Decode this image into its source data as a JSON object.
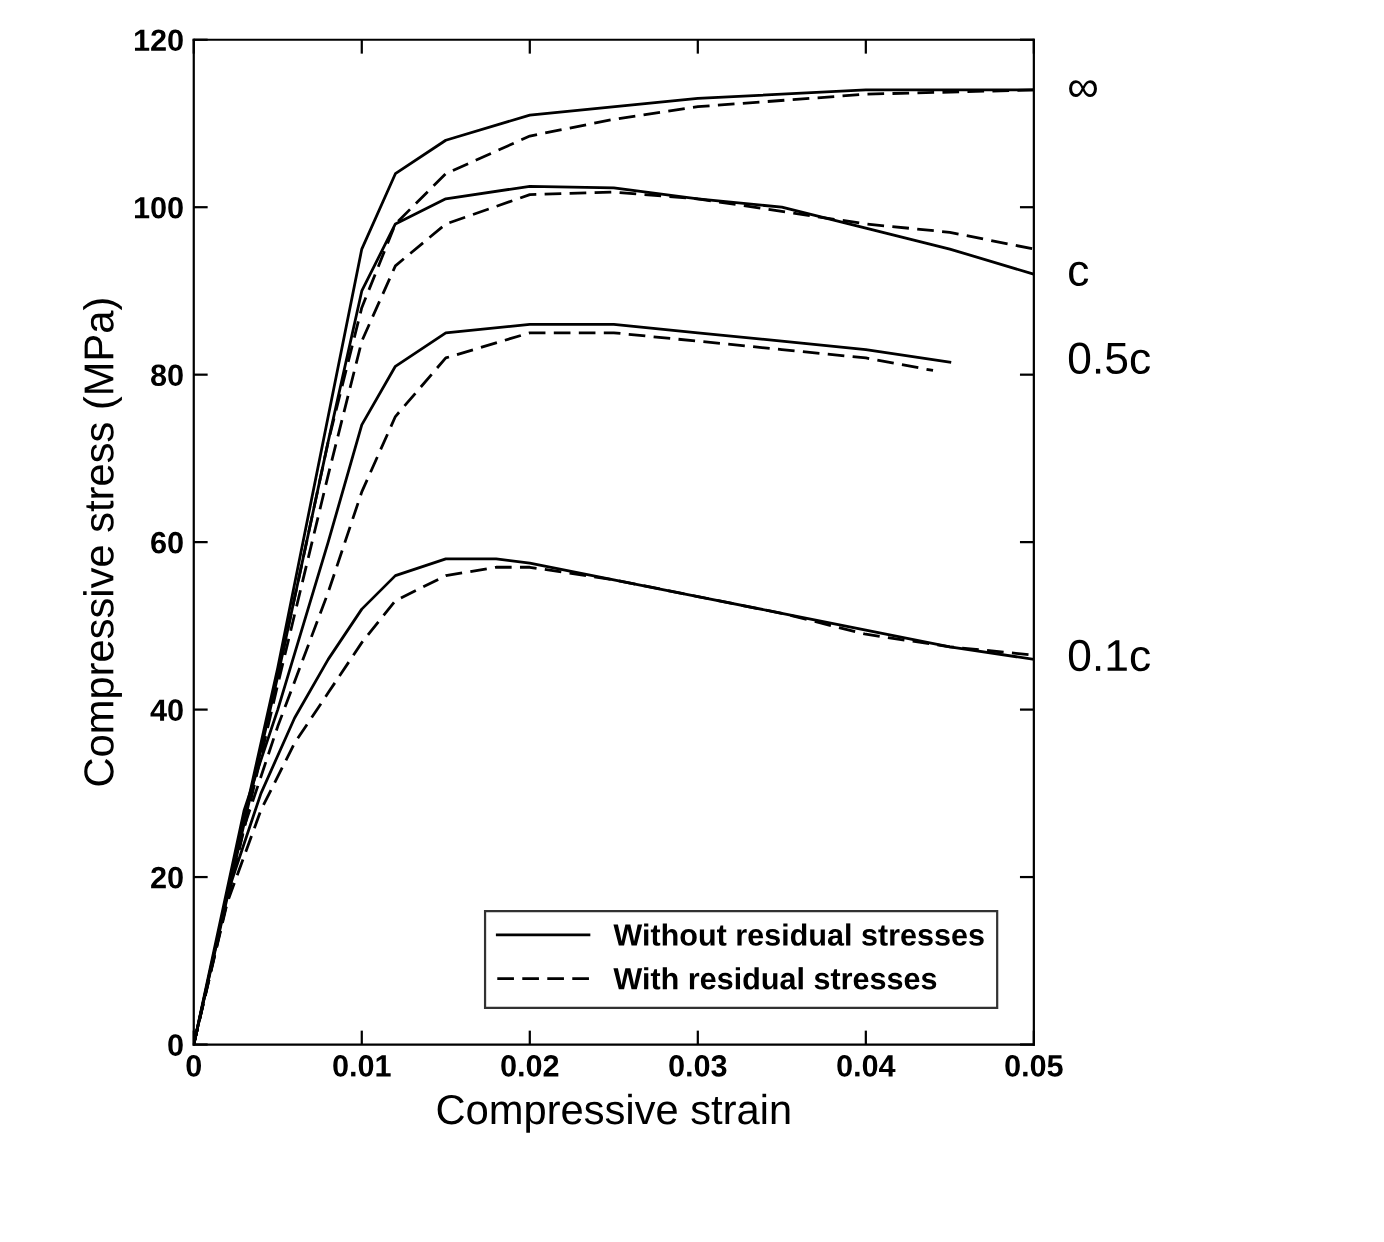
{
  "chart_data": {
    "type": "line",
    "xlabel": "Compressive strain",
    "ylabel": "Compressive stress (MPa)",
    "xlim": [
      0,
      0.05
    ],
    "ylim": [
      0,
      120
    ],
    "xticks": [
      0,
      0.01,
      0.02,
      0.03,
      0.04,
      0.05
    ],
    "yticks": [
      0,
      20,
      40,
      60,
      80,
      100,
      120
    ],
    "grid": false,
    "legend": "bottom right",
    "marker": "none",
    "series": [
      {
        "name": "Without residual stresses",
        "color": "#000000",
        "line_style": "solid",
        "x": [
          0,
          0.005,
          0.008,
          0.01,
          0.012,
          0.015,
          0.02,
          0.03,
          0.04,
          0.05
        ],
        "values": [
          0,
          45,
          75,
          95,
          104,
          108,
          111,
          113,
          114,
          114
        ]
      },
      {
        "name": "With residual stresses",
        "color": "#000000",
        "line_style": "dashed",
        "x": [
          0,
          0.005,
          0.008,
          0.01,
          0.012,
          0.015,
          0.02,
          0.025,
          0.03,
          0.04,
          0.05
        ],
        "values": [
          0,
          44,
          72,
          88,
          98,
          104,
          108.5,
          110.5,
          112,
          113.5,
          114
        ]
      },
      {
        "color": "#000000",
        "line_style": "solid",
        "x": [
          0,
          0.005,
          0.008,
          0.01,
          0.012,
          0.015,
          0.02,
          0.025,
          0.03,
          0.035,
          0.04,
          0.045,
          0.05
        ],
        "values": [
          0,
          44,
          72,
          90,
          98,
          101,
          102.5,
          102.3,
          101,
          100,
          97.5,
          95,
          92
        ]
      },
      {
        "color": "#000000",
        "line_style": "dashed",
        "x": [
          0,
          0.005,
          0.008,
          0.01,
          0.012,
          0.015,
          0.02,
          0.025,
          0.03,
          0.035,
          0.04,
          0.045,
          0.05
        ],
        "values": [
          0,
          43,
          68,
          84,
          93,
          98,
          101.5,
          101.8,
          101,
          99.5,
          98,
          97,
          95
        ]
      },
      {
        "color": "#000000",
        "line_style": "solid",
        "x": [
          0,
          0.003,
          0.005,
          0.008,
          0.01,
          0.012,
          0.015,
          0.02,
          0.025,
          0.03,
          0.035,
          0.04,
          0.045
        ],
        "values": [
          0,
          28,
          40,
          60,
          74,
          81,
          85,
          86,
          86,
          85,
          84,
          83,
          81.5
        ]
      },
      {
        "color": "#000000",
        "line_style": "dashed",
        "x": [
          0,
          0.003,
          0.005,
          0.008,
          0.01,
          0.012,
          0.015,
          0.02,
          0.025,
          0.03,
          0.035,
          0.04,
          0.044
        ],
        "values": [
          0,
          26,
          38,
          54,
          66,
          75,
          82,
          85,
          85,
          84,
          83,
          82,
          80.5
        ]
      },
      {
        "color": "#000000",
        "line_style": "solid",
        "x": [
          0,
          0.002,
          0.004,
          0.006,
          0.008,
          0.01,
          0.012,
          0.015,
          0.018,
          0.02,
          0.025,
          0.03,
          0.035,
          0.04,
          0.045,
          0.05
        ],
        "values": [
          0,
          18,
          30,
          39,
          46,
          52,
          56,
          58,
          58,
          57.5,
          55.5,
          53.5,
          51.5,
          49.5,
          47.5,
          46
        ]
      },
      {
        "color": "#000000",
        "line_style": "dashed",
        "x": [
          0,
          0.002,
          0.004,
          0.006,
          0.008,
          0.01,
          0.012,
          0.015,
          0.018,
          0.02,
          0.025,
          0.03,
          0.035,
          0.04,
          0.045,
          0.05
        ],
        "values": [
          0,
          17,
          28,
          36,
          42,
          48,
          53,
          56,
          57,
          57,
          55.5,
          53.5,
          51.5,
          49,
          47.5,
          46.5
        ]
      }
    ],
    "annotations": [
      "∞",
      "c",
      "0.5c",
      "0.1c"
    ]
  }
}
